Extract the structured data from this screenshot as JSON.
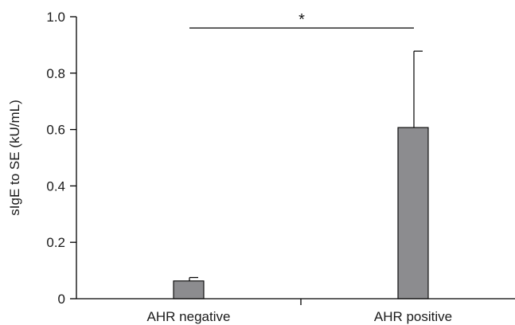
{
  "chart_data": {
    "type": "bar",
    "categories": [
      "AHR negative",
      "AHR positive"
    ],
    "values": [
      0.063,
      0.607
    ],
    "error_upper": [
      0.075,
      0.878
    ],
    "ylabel": "sIgE to SE (kU/mL)",
    "xlabel": "",
    "ylim": [
      0,
      1.0
    ],
    "yticks": [
      0,
      0.2,
      0.4,
      0.6,
      0.8,
      1.0
    ],
    "ytick_labels": [
      "0",
      "0.2",
      "0.4",
      "0.6",
      "0.8",
      "1.0"
    ],
    "grid": false,
    "colors": {
      "bar": "#8c8c8f",
      "line": "#000000"
    },
    "annotations": [
      {
        "type": "significance",
        "text": "*",
        "between": [
          "AHR negative",
          "AHR positive"
        ],
        "y": 0.96
      }
    ]
  }
}
